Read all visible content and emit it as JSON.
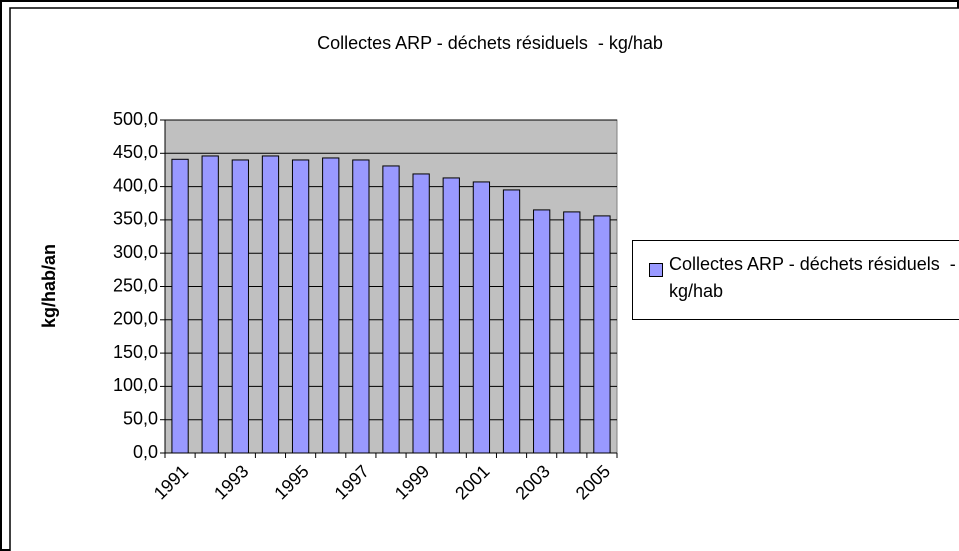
{
  "chart_data": {
    "type": "bar",
    "title": "Collectes ARP - déchets résiduels  - kg/hab",
    "y_label": "kg/hab/an",
    "categories": [
      "1991",
      null,
      "1993",
      null,
      "1995",
      null,
      "1997",
      null,
      "1999",
      null,
      "2001",
      null,
      "2003",
      null,
      "2005"
    ],
    "series": [
      {
        "name": "Collectes ARP - déchets résiduels  - kg/hab",
        "color": "#9999ff",
        "values": [
          441,
          446,
          440,
          446,
          440,
          443,
          440,
          431,
          419,
          413,
          407,
          395,
          365,
          362,
          356
        ]
      }
    ],
    "ylim": [
      0,
      500
    ],
    "yticks": [
      {
        "value": 0,
        "label": "0,0"
      },
      {
        "value": 50,
        "label": "50,0"
      },
      {
        "value": 100,
        "label": "100,0"
      },
      {
        "value": 150,
        "label": "150,0"
      },
      {
        "value": 200,
        "label": "200,0"
      },
      {
        "value": 250,
        "label": "250,0"
      },
      {
        "value": 300,
        "label": "300,0"
      },
      {
        "value": 350,
        "label": "350,0"
      },
      {
        "value": 400,
        "label": "400,0"
      },
      {
        "value": 450,
        "label": "450,0"
      },
      {
        "value": 500,
        "label": "500,0"
      }
    ],
    "grid": true,
    "plot_background": "#c0c0c0",
    "legend": "right"
  }
}
